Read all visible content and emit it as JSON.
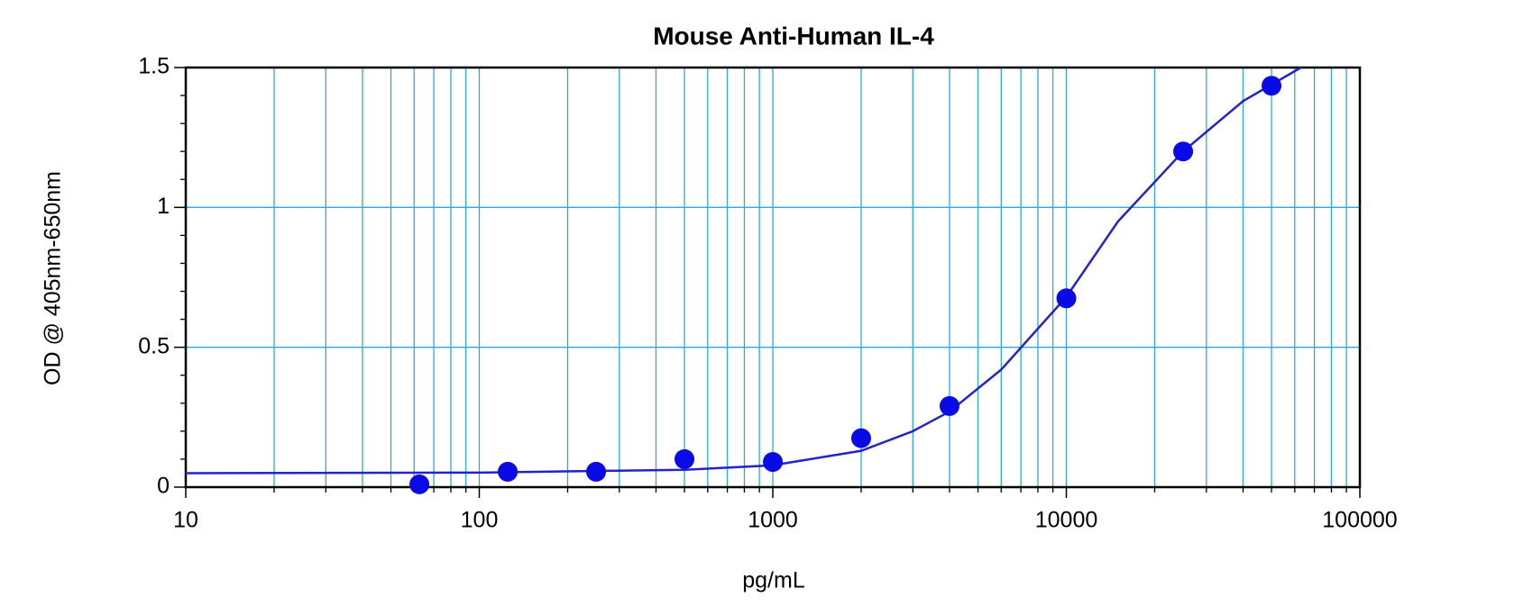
{
  "chart_data": {
    "type": "scatter",
    "title": "Mouse Anti-Human IL-4",
    "x_label": "pg/mL",
    "y_label": "OD @ 405nm-650nm",
    "xscale": "log",
    "grid": true,
    "xlim": [
      10,
      100000
    ],
    "ylim": [
      0,
      1.5
    ],
    "xticks": [
      10,
      100,
      1000,
      10000,
      100000
    ],
    "xminorticks": [
      20,
      30,
      40,
      50,
      60,
      70,
      80,
      90,
      200,
      300,
      400,
      500,
      600,
      700,
      800,
      900,
      2000,
      3000,
      4000,
      5000,
      6000,
      7000,
      8000,
      9000,
      20000,
      30000,
      40000,
      50000,
      60000,
      70000,
      80000,
      90000
    ],
    "yticks": [
      0,
      0.5,
      1,
      1.5
    ],
    "yminorticks": [
      0.1,
      0.2,
      0.3,
      0.4,
      0.6,
      0.7,
      0.8,
      0.9,
      1.1,
      1.2,
      1.3,
      1.4
    ],
    "grid_color": "#2ea8dc",
    "series": [
      {
        "kind": "points",
        "color": "#0a0ae6",
        "x": [
          62.5,
          125,
          250,
          500,
          1000,
          2000,
          4000,
          10000,
          25000,
          50000
        ],
        "values": [
          0.01,
          0.055,
          0.055,
          0.1,
          0.09,
          0.175,
          0.29,
          0.675,
          1.2,
          1.435
        ]
      },
      {
        "kind": "line",
        "color": "#2323c8",
        "x": [
          10,
          100,
          500,
          1000,
          2000,
          3000,
          4000,
          6000,
          10000,
          15000,
          25000,
          40000,
          63000
        ],
        "values": [
          0.05,
          0.052,
          0.062,
          0.078,
          0.13,
          0.2,
          0.27,
          0.42,
          0.68,
          0.95,
          1.2,
          1.38,
          1.5
        ]
      }
    ]
  }
}
